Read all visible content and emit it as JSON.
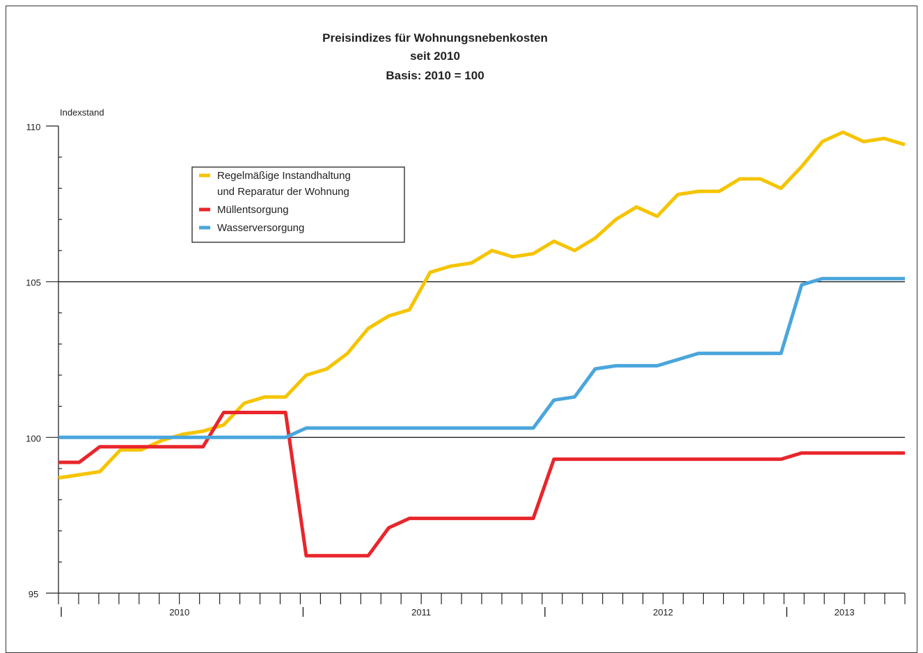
{
  "chart_data": {
    "type": "line",
    "title": [
      "Preisindizes für Wohnungsnebenkosten",
      "seit 2010",
      "Basis: 2010 = 100"
    ],
    "ylabel": "Indexstand",
    "ylim": [
      95,
      110
    ],
    "yticks": [
      95,
      100,
      105,
      110
    ],
    "gridlines": [
      100,
      105
    ],
    "years": [
      "2010",
      "2011",
      "2012",
      "2013"
    ],
    "legend_position": "upper-left",
    "series": [
      {
        "name": "Regelmäßige Instandhaltung und Reparatur der Wohnung",
        "legend_lines": [
          "Regelmäßige Instandhaltung",
          "und Reparatur der Wohnung"
        ],
        "color": "#f5c400",
        "values": [
          98.7,
          98.8,
          98.9,
          99.6,
          99.6,
          99.9,
          100.1,
          100.2,
          100.4,
          101.1,
          101.3,
          101.3,
          102.0,
          102.2,
          102.7,
          103.5,
          103.9,
          104.1,
          105.3,
          105.5,
          105.6,
          106.0,
          105.8,
          105.9,
          106.3,
          106.0,
          106.4,
          107.0,
          107.4,
          107.1,
          107.8,
          107.9,
          107.9,
          108.3,
          108.3,
          108.0,
          108.7,
          109.5,
          109.8,
          109.5,
          109.6,
          109.4
        ]
      },
      {
        "name": "Müllentsorgung",
        "legend_lines": [
          "Müllentsorgung"
        ],
        "color": "#e8262b",
        "values": [
          99.2,
          99.2,
          99.7,
          99.7,
          99.7,
          99.7,
          99.7,
          99.7,
          100.8,
          100.8,
          100.8,
          100.8,
          96.2,
          96.2,
          96.2,
          96.2,
          97.1,
          97.4,
          97.4,
          97.4,
          97.4,
          97.4,
          97.4,
          97.4,
          99.3,
          99.3,
          99.3,
          99.3,
          99.3,
          99.3,
          99.3,
          99.3,
          99.3,
          99.3,
          99.3,
          99.3,
          99.5,
          99.5,
          99.5,
          99.5,
          99.5,
          99.5
        ]
      },
      {
        "name": "Wasserversorgung",
        "legend_lines": [
          "Wasserversorgung"
        ],
        "color": "#4aa6dc",
        "values": [
          100.0,
          100.0,
          100.0,
          100.0,
          100.0,
          100.0,
          100.0,
          100.0,
          100.0,
          100.0,
          100.0,
          100.0,
          100.3,
          100.3,
          100.3,
          100.3,
          100.3,
          100.3,
          100.3,
          100.3,
          100.3,
          100.3,
          100.3,
          100.3,
          101.2,
          101.3,
          102.2,
          102.3,
          102.3,
          102.3,
          102.5,
          102.7,
          102.7,
          102.7,
          102.7,
          102.7,
          104.9,
          105.1,
          105.1,
          105.1,
          105.1,
          105.1
        ]
      }
    ]
  }
}
